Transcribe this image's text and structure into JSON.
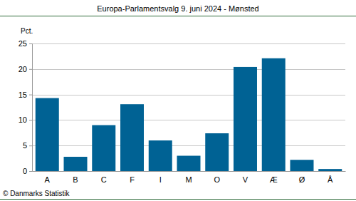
{
  "chart_data": {
    "type": "bar",
    "title": "Europa-Parlamentsvalg 9. juni 2024 - Mønsted",
    "y_label": "Pct.",
    "annotations": [
      "© Danmarks Statistik"
    ],
    "categories": [
      "A",
      "B",
      "C",
      "F",
      "I",
      "M",
      "O",
      "V",
      "Æ",
      "Ø",
      "Å"
    ],
    "values": [
      14.3,
      2.8,
      9.0,
      13.1,
      6.0,
      3.0,
      7.4,
      20.4,
      22.1,
      2.2,
      0.4
    ],
    "color": "#006294",
    "ylim": [
      0,
      25
    ],
    "yticks": [
      0,
      5,
      10,
      15,
      20,
      25
    ],
    "grid": true
  }
}
